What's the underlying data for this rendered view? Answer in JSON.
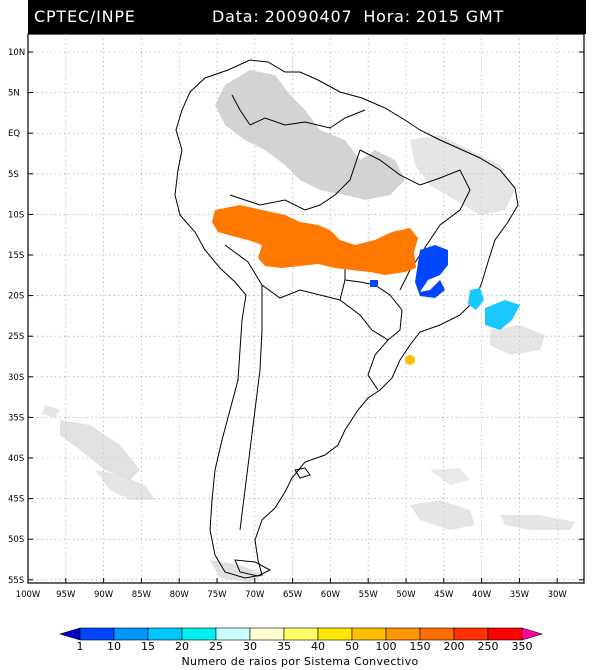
{
  "header": {
    "source": "CPTEC/INPE",
    "date_label": "Data:",
    "date_value": "20090407",
    "time_label": "Hora:",
    "time_value": "2015 GMT"
  },
  "map": {
    "lat_labels": [
      "10N",
      "5N",
      "EQ",
      "5S",
      "10S",
      "15S",
      "20S",
      "25S",
      "30S",
      "35S",
      "40S",
      "45S",
      "50S",
      "55S"
    ],
    "lon_labels": [
      "100W",
      "95W",
      "90W",
      "85W",
      "80W",
      "75W",
      "70W",
      "65W",
      "60W",
      "55W",
      "50W",
      "45W",
      "40W",
      "35W",
      "30W"
    ]
  },
  "legend": {
    "title": "Numero de raios por Sistema Convectivo",
    "values": [
      "1",
      "10",
      "15",
      "20",
      "25",
      "30",
      "35",
      "40",
      "50",
      "100",
      "150",
      "200",
      "250",
      "350"
    ],
    "colors": [
      "#0000c8",
      "#0046ff",
      "#0096ff",
      "#00c8ff",
      "#00f0f0",
      "#c8ffff",
      "#ffffd2",
      "#ffff64",
      "#ffe600",
      "#ffbe00",
      "#ff9600",
      "#ff6e00",
      "#ff3200",
      "#ff0000",
      "#ff00a0"
    ]
  },
  "colors": {
    "land_clouds": "#cfcfcf",
    "lightning_orange": "#ff7800",
    "lightning_blue": "#0046ff",
    "lightning_cyan": "#19c8ff",
    "lightning_yellow": "#ffbe00"
  }
}
